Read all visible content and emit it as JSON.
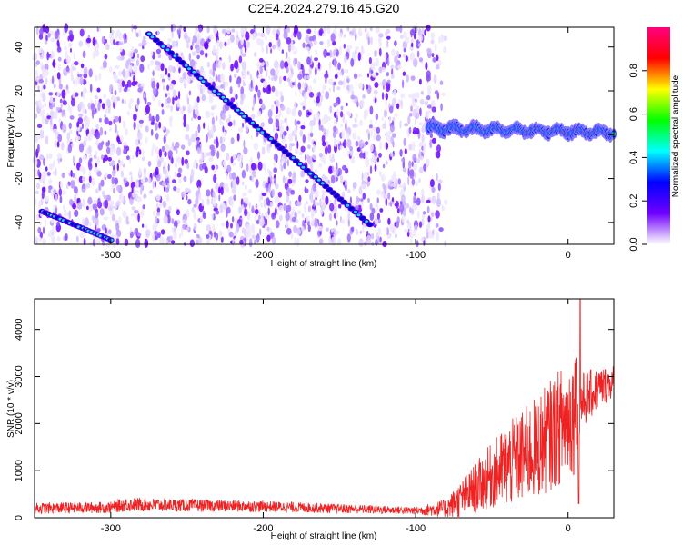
{
  "title": "C2E4.2024.279.16.45.G20",
  "chart_data": [
    {
      "type": "heatmap",
      "xlabel": "Height of straight line (km)",
      "ylabel": "Frequency (Hz)",
      "xlim": [
        -350,
        30
      ],
      "ylim": [
        -50,
        49
      ],
      "x_ticks": [
        "-300",
        "-200",
        "-100",
        "0"
      ],
      "y_ticks": [
        "-40",
        "-20",
        "0",
        "20",
        "40"
      ],
      "colorbar": {
        "label": "Normalized spectral amplitude",
        "range": [
          0,
          1
        ],
        "ticks": [
          "0.0",
          "0.2",
          "0.4",
          "0.6",
          "0.8"
        ],
        "colormap": [
          "#ffffff",
          "#6f00ff",
          "#0000ff",
          "#00ffff",
          "#00ff00",
          "#ffff00",
          "#ff0000",
          "#ff0080"
        ]
      },
      "features": [
        {
          "name": "descending trace",
          "x": [
            -275,
            -130
          ],
          "y": [
            46,
            -41
          ]
        },
        {
          "name": "lower trace",
          "x": [
            -345,
            -300
          ],
          "y": [
            -35,
            -48
          ]
        },
        {
          "name": "horizontal band",
          "x": [
            -92,
            30
          ],
          "y_center": [
            3,
            1
          ]
        }
      ],
      "noise_extent_x": [
        -350,
        -80
      ]
    },
    {
      "type": "line",
      "xlabel": "Height of straight line (km)",
      "ylabel": "SNR (10 * v/v)",
      "xlim": [
        -350,
        30
      ],
      "ylim": [
        0,
        4650
      ],
      "x_ticks": [
        "-300",
        "-200",
        "-100",
        "0"
      ],
      "y_ticks": [
        "0",
        "1000",
        "2000",
        "3000",
        "4000"
      ],
      "color": "#ee2222",
      "envelope": {
        "x": [
          -350,
          -300,
          -290,
          -200,
          -100,
          -80,
          -70,
          -50,
          -40,
          -30,
          -20,
          -10,
          0,
          5,
          10,
          20,
          30
        ],
        "mean": [
          200,
          220,
          280,
          240,
          150,
          200,
          400,
          900,
          1100,
          1300,
          1500,
          1800,
          2100,
          2300,
          2500,
          2750,
          2900
        ],
        "spread": [
          120,
          120,
          150,
          120,
          80,
          200,
          400,
          700,
          900,
          1000,
          1100,
          1200,
          1300,
          1400,
          600,
          450,
          350
        ]
      },
      "peaks": [
        {
          "x": 8,
          "y": 4650
        },
        {
          "x": 5,
          "y": 3350
        }
      ],
      "dips": [
        {
          "x": 7,
          "y": 300
        }
      ]
    }
  ]
}
